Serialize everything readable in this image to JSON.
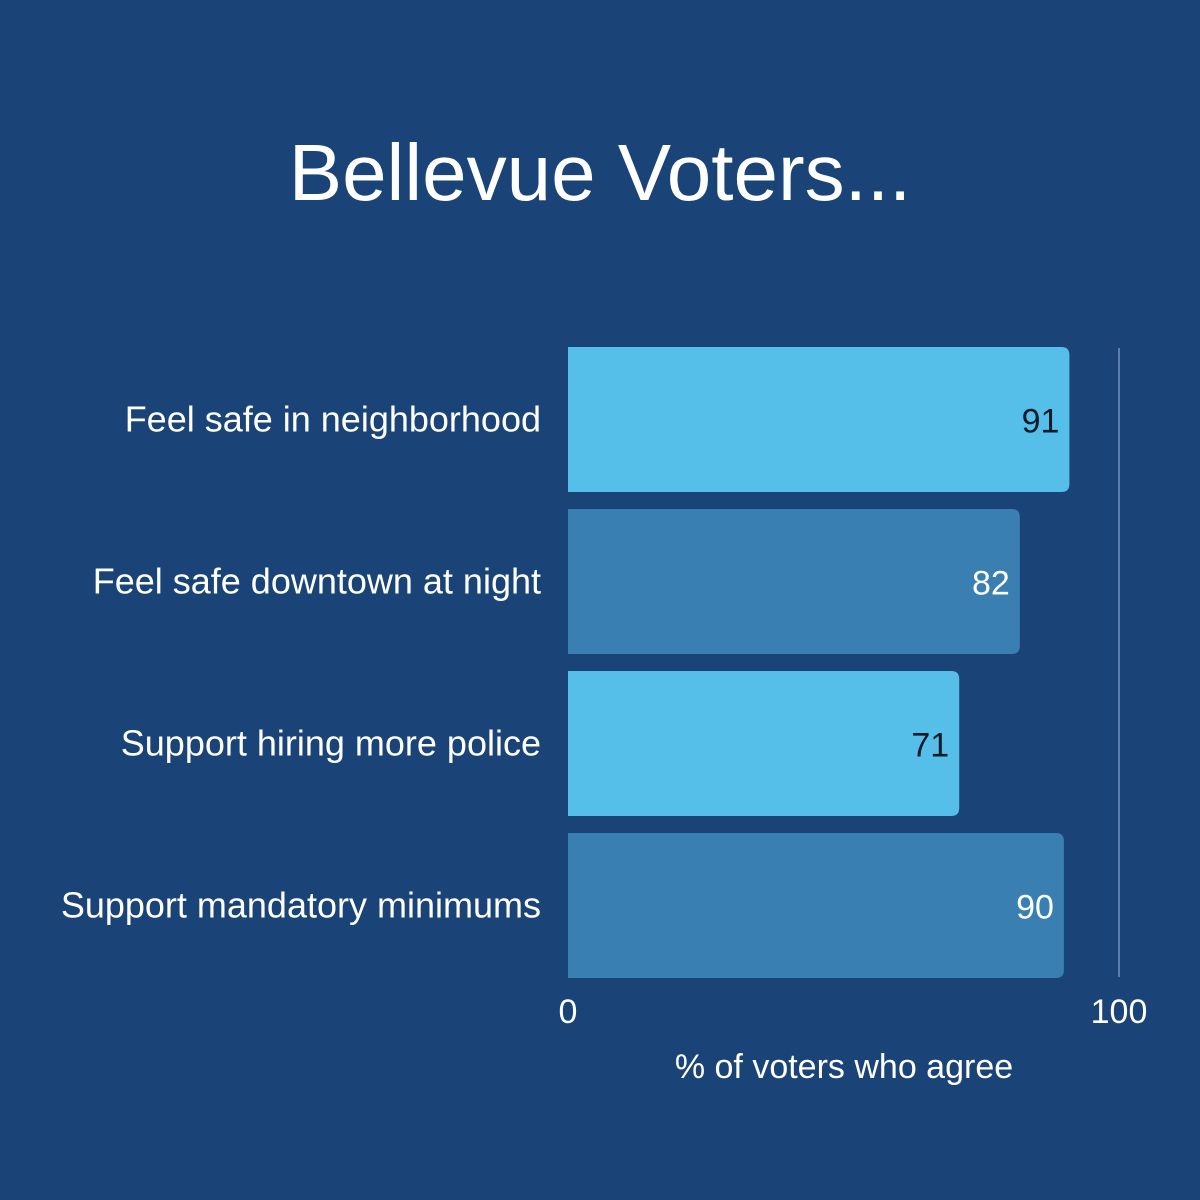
{
  "colors": {
    "background": "#1a4477",
    "bar_light": "#55bfe9",
    "bar_dark": "#3a7fb2",
    "label_on_light": "#0d1a2a",
    "label_on_dark": "#ffffff",
    "reference_line": "#5a7fae"
  },
  "chart_data": {
    "type": "bar",
    "orientation": "horizontal",
    "title": "Bellevue Voters...",
    "xlabel": "% of voters who agree",
    "ylabel": "",
    "categories": [
      "Feel safe in neighborhood",
      "Feel safe downtown at night",
      "Support hiring more police",
      "Support mandatory minimums"
    ],
    "values": [
      91,
      82,
      71,
      90
    ],
    "data_labels": [
      "91",
      "82",
      "71",
      "90"
    ],
    "bar_colors": [
      "#55bfe9",
      "#3a7fb2",
      "#55bfe9",
      "#3a7fb2"
    ],
    "xlim": [
      0,
      100
    ],
    "x_ticks": [
      "0",
      "100"
    ],
    "grid": false,
    "legend": "none"
  }
}
